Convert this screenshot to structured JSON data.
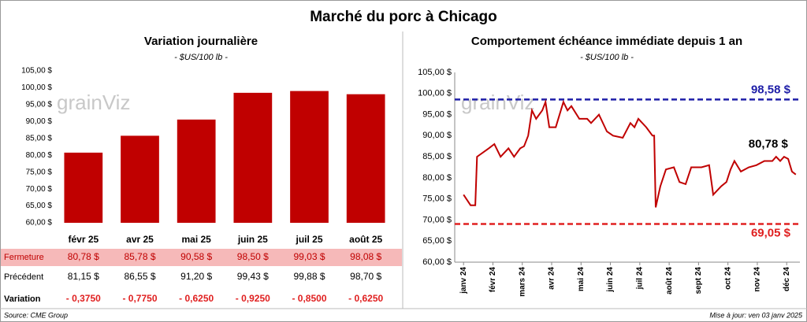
{
  "title": "Marché du porc à Chicago",
  "watermark": "grainViz",
  "source": "Source: CME Group",
  "updated": "Mise à jour: ven 03 janv 2025",
  "chart_data": [
    {
      "type": "bar",
      "title": "Variation journalière",
      "subtitle": "- $US/100 lb -",
      "categories": [
        "févr 25",
        "avr 25",
        "mai 25",
        "juin 25",
        "juil 25",
        "août 25"
      ],
      "series": [
        {
          "name": "Fermeture",
          "color": "#c00000",
          "values": [
            80.78,
            85.78,
            90.58,
            98.5,
            99.03,
            98.08
          ],
          "value_labels": [
            "80,78 $",
            "85,78 $",
            "90,58 $",
            "98,50 $",
            "99,03 $",
            "98,08 $"
          ]
        }
      ],
      "ylim": [
        60,
        105
      ],
      "yticks": [
        {
          "value": 60,
          "label": "60,00 $"
        },
        {
          "value": 65,
          "label": "65,00 $"
        },
        {
          "value": 70,
          "label": "70,00 $"
        },
        {
          "value": 75,
          "label": "75,00 $"
        },
        {
          "value": 80,
          "label": "80,00 $"
        },
        {
          "value": 85,
          "label": "85,00 $"
        },
        {
          "value": 90,
          "label": "90,00 $"
        },
        {
          "value": 95,
          "label": "95,00 $"
        },
        {
          "value": 100,
          "label": "100,00 $"
        },
        {
          "value": 105,
          "label": "105,00 $"
        }
      ],
      "table_rows": [
        {
          "label": "Précédent",
          "cells": [
            "81,15 $",
            "86,55 $",
            "91,20 $",
            "99,43 $",
            "99,88 $",
            "98,70 $"
          ]
        },
        {
          "label": "Variation",
          "cells": [
            "- 0,3750",
            "- 0,7750",
            "- 0,6250",
            "- 0,9250",
            "- 0,8500",
            "- 0,6250"
          ]
        }
      ]
    },
    {
      "type": "line",
      "title": "Comportement échéance immédiate depuis 1 an",
      "subtitle": "- $US/100 lb -",
      "x": [
        0,
        0.24,
        0.4,
        0.46,
        0.86,
        1.05,
        1.26,
        1.53,
        1.72,
        1.93,
        2.06,
        2.2,
        2.33,
        2.47,
        2.68,
        2.79,
        2.92,
        3.14,
        3.4,
        3.54,
        3.67,
        3.94,
        4.21,
        4.34,
        4.61,
        4.88,
        5.09,
        5.42,
        5.68,
        5.82,
        5.95,
        6.22,
        6.43,
        6.49,
        6.54,
        6.7,
        6.89,
        7.16,
        7.35,
        7.56,
        7.75,
        8.1,
        8.36,
        8.5,
        8.77,
        8.95,
        9.09,
        9.22,
        9.44,
        9.71,
        9.97,
        10.24,
        10.51,
        10.64,
        10.78,
        10.91,
        11.05,
        11.18,
        11.31
      ],
      "series": [
        {
          "name": "Échéance immédiate",
          "color": "#c00000",
          "values": [
            76,
            73.5,
            73.5,
            85,
            87,
            88,
            85,
            87,
            85,
            87,
            87.5,
            90,
            96,
            94,
            96,
            98,
            92,
            92,
            98,
            96,
            97,
            94,
            94,
            93,
            95,
            91,
            90,
            89.5,
            93,
            92,
            94,
            92,
            90,
            90,
            73,
            78,
            82,
            82.5,
            79,
            78.5,
            82.5,
            82.5,
            83,
            76,
            78,
            79,
            82,
            84,
            81.5,
            82.5,
            83,
            84,
            84,
            85,
            84,
            85,
            84.5,
            81.5,
            80.78
          ]
        }
      ],
      "xlim": [
        -0.3,
        11.45
      ],
      "xticks": [
        {
          "value": 0,
          "label": "janv 24"
        },
        {
          "value": 1,
          "label": "févr 24"
        },
        {
          "value": 2,
          "label": "mars 24"
        },
        {
          "value": 3,
          "label": "avr 24"
        },
        {
          "value": 4,
          "label": "mai 24"
        },
        {
          "value": 5,
          "label": "juin 24"
        },
        {
          "value": 6,
          "label": "juil 24"
        },
        {
          "value": 7,
          "label": "août 24"
        },
        {
          "value": 8,
          "label": "sept 24"
        },
        {
          "value": 9,
          "label": "oct 24"
        },
        {
          "value": 10,
          "label": "nov 24"
        },
        {
          "value": 11,
          "label": "déc 24"
        }
      ],
      "ylim": [
        60,
        105
      ],
      "yticks": [
        {
          "value": 60,
          "label": "60,00 $"
        },
        {
          "value": 65,
          "label": "65,00 $"
        },
        {
          "value": 70,
          "label": "70,00 $"
        },
        {
          "value": 75,
          "label": "75,00 $"
        },
        {
          "value": 80,
          "label": "80,00 $"
        },
        {
          "value": 85,
          "label": "85,00 $"
        },
        {
          "value": 90,
          "label": "90,00 $"
        },
        {
          "value": 95,
          "label": "95,00 $"
        },
        {
          "value": 100,
          "label": "100,00 $"
        },
        {
          "value": 105,
          "label": "105,00 $"
        }
      ],
      "reference_lines": [
        {
          "value": 98.58,
          "label": "98,58 $",
          "color": "#1f1fa8"
        },
        {
          "value": 69.05,
          "label": "69,05 $",
          "color": "#e02020"
        }
      ],
      "annotations": [
        {
          "x": 11.31,
          "y": 80.78,
          "label": "80,78 $"
        }
      ]
    }
  ]
}
